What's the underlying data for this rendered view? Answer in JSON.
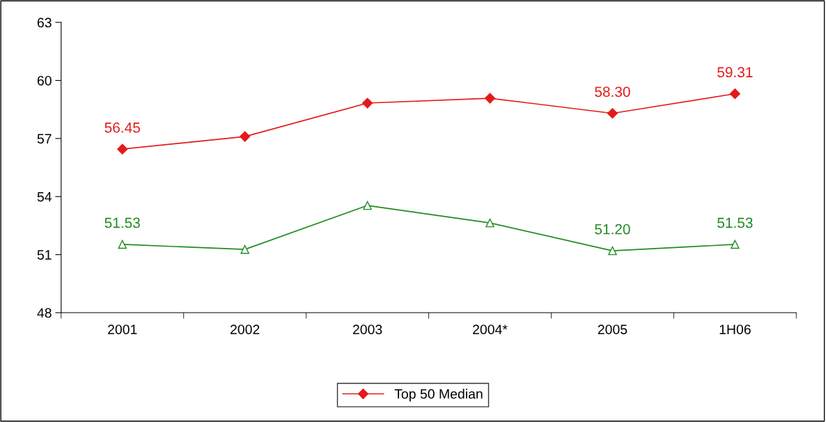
{
  "chart_data": {
    "type": "line",
    "categories": [
      "2001",
      "2002",
      "2003",
      "2004*",
      "2005",
      "1H06"
    ],
    "series": [
      {
        "color": "#228b22",
        "marker": "triangle",
        "values": [
          51.53,
          51.27,
          53.54,
          52.64,
          51.2,
          51.53
        ],
        "value_labels": [
          "51.53",
          null,
          null,
          null,
          "51.20",
          "51.53"
        ]
      },
      {
        "name": "Top 50 Median",
        "color": "#e31b1b",
        "marker": "diamond",
        "values": [
          56.45,
          57.1,
          58.83,
          59.08,
          58.3,
          59.31
        ],
        "value_labels": [
          "56.45",
          null,
          null,
          null,
          "58.30",
          "59.31"
        ]
      }
    ],
    "ylim": [
      48,
      63
    ],
    "yticks": [
      48,
      51,
      54,
      57,
      60,
      63
    ],
    "grid": false,
    "legend": "bottom"
  }
}
